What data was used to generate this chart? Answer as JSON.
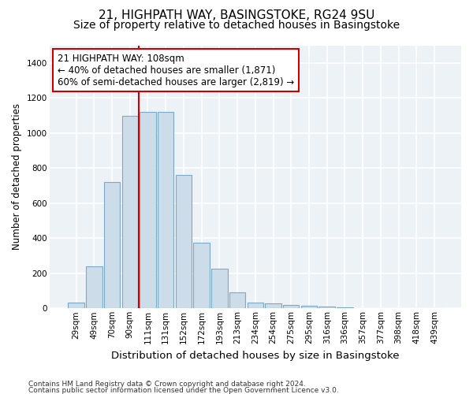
{
  "title1": "21, HIGHPATH WAY, BASINGSTOKE, RG24 9SU",
  "title2": "Size of property relative to detached houses in Basingstoke",
  "xlabel": "Distribution of detached houses by size in Basingstoke",
  "ylabel": "Number of detached properties",
  "footer1": "Contains HM Land Registry data © Crown copyright and database right 2024.",
  "footer2": "Contains public sector information licensed under the Open Government Licence v3.0.",
  "categories": [
    "29sqm",
    "49sqm",
    "70sqm",
    "90sqm",
    "111sqm",
    "131sqm",
    "152sqm",
    "172sqm",
    "193sqm",
    "213sqm",
    "234sqm",
    "254sqm",
    "275sqm",
    "295sqm",
    "316sqm",
    "336sqm",
    "357sqm",
    "377sqm",
    "398sqm",
    "418sqm",
    "439sqm"
  ],
  "values": [
    32,
    240,
    720,
    1100,
    1120,
    1120,
    760,
    375,
    225,
    90,
    32,
    27,
    20,
    15,
    10,
    5,
    0,
    0,
    0,
    0,
    0
  ],
  "bar_color": "#ccdce8",
  "bar_edge_color": "#7aaac8",
  "red_line_index": 4,
  "annotation_line1": "21 HIGHPATH WAY: 108sqm",
  "annotation_line2": "← 40% of detached houses are smaller (1,871)",
  "annotation_line3": "60% of semi-detached houses are larger (2,819) →",
  "ylim": [
    0,
    1500
  ],
  "yticks": [
    0,
    200,
    400,
    600,
    800,
    1000,
    1200,
    1400
  ],
  "bg_color": "#edf2f7",
  "grid_color": "#ffffff",
  "title1_fontsize": 11,
  "title2_fontsize": 10,
  "xlabel_fontsize": 9.5,
  "ylabel_fontsize": 8.5,
  "tick_fontsize": 7.5,
  "footer_fontsize": 6.5,
  "annotation_fontsize": 8.5
}
